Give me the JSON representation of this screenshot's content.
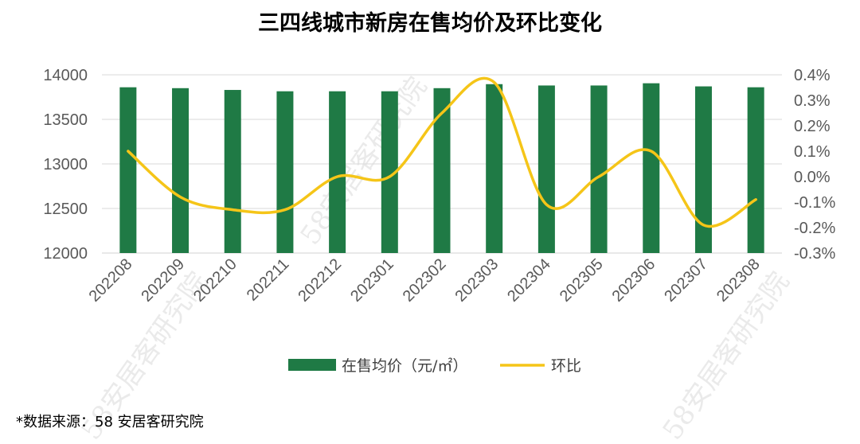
{
  "chart_data": {
    "type": "bar+line",
    "title": "三四线城市新房在售均价及环比变化",
    "categories": [
      "202208",
      "202209",
      "202210",
      "202211",
      "202212",
      "202301",
      "202302",
      "202303",
      "202304",
      "202305",
      "202306",
      "202307",
      "202308"
    ],
    "series": [
      {
        "name": "在售均价（元/㎡）",
        "type": "bar",
        "axis": "left",
        "color": "#1f7a45",
        "values": [
          13860,
          13850,
          13830,
          13815,
          13815,
          13815,
          13850,
          13895,
          13880,
          13880,
          13905,
          13870,
          13860
        ]
      },
      {
        "name": "环比",
        "type": "line",
        "axis": "right",
        "color": "#f5c518",
        "values": [
          0.1,
          -0.08,
          -0.13,
          -0.13,
          0.0,
          0.0,
          0.25,
          0.37,
          -0.11,
          0.0,
          0.1,
          -0.19,
          -0.09
        ]
      }
    ],
    "ylim_left": [
      12000,
      14000
    ],
    "yticks_left": [
      "14000",
      "13500",
      "13000",
      "12500",
      "12000"
    ],
    "ylim_right": [
      -0.3,
      0.4
    ],
    "yticks_right": [
      "0.4%",
      "0.3%",
      "0.2%",
      "0.1%",
      "0.0%",
      "-0.1%",
      "-0.2%",
      "-0.3%"
    ],
    "legend": {
      "position": "bottom-center",
      "bar_label": "在售均价（元/㎡）",
      "line_label": "环比"
    }
  },
  "source": "*数据来源：58 安居客研究院",
  "watermark": "58安居客研究院"
}
